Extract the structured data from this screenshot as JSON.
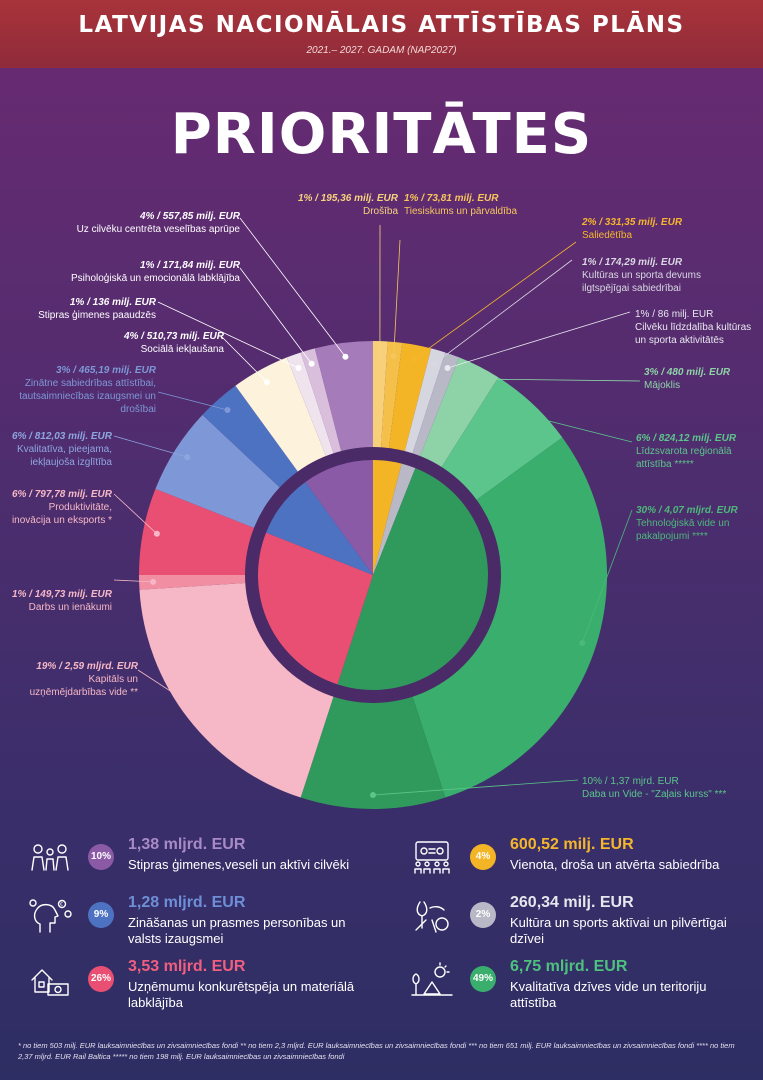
{
  "header": {
    "title": "LATVIJAS NACIONĀLAIS ATTĪSTĪBAS PLĀNS",
    "subtitle": "2021.– 2027. GADAM (NAP2027)"
  },
  "headline": "PRIORITĀTES",
  "chart_data": {
    "type": "pie",
    "outer_ring": [
      {
        "value_label": "1% / 195,36 milj. EUR",
        "name": "Drošība",
        "percent": 1,
        "color": "#f8d07a"
      },
      {
        "value_label": "1% / 73,81 milj. EUR",
        "name": "Tiesiskums un pārvaldība",
        "percent": 1,
        "color": "#f4c04a"
      },
      {
        "value_label": "2% / 331,35 milj. EUR",
        "name": "Saliedētība",
        "percent": 2,
        "color": "#f3b526"
      },
      {
        "value_label": "1% / 174,29 milj. EUR",
        "name": "Kultūras un sporta devums ilgtspējīgai sabiedrībai",
        "percent": 1,
        "color": "#d6d6e0"
      },
      {
        "value_label": "1% / 86 milj. EUR",
        "name": "Cilvēku līdzdalība kultūras un sporta aktivitātēs",
        "percent": 1,
        "color": "#b8b8c6"
      },
      {
        "value_label": "3% / 480 milj. EUR",
        "name": "Mājoklis",
        "percent": 3,
        "color": "#8ed3a8"
      },
      {
        "value_label": "6% / 824,12 milj. EUR",
        "name": "Līdzsvarota reģionālā attīstība *****",
        "percent": 6,
        "color": "#5cc58b"
      },
      {
        "value_label": "30% / 4,07 mljrd. EUR",
        "name": "Tehnoloģiskā vide un pakalpojumi ****",
        "percent": 30,
        "color": "#3aae6c"
      },
      {
        "value_label": "10% / 1,37 mjrd. EUR",
        "name": "Daba un Vide - \"Zaļais kurss\" ***",
        "percent": 10,
        "color": "#2f9a5c"
      },
      {
        "value_label": "19% / 2,59 mljrd. EUR",
        "name": "Kapitāls un uzņēmējdarbības vide **",
        "percent": 19,
        "color": "#f6b8c6"
      },
      {
        "value_label": "1% / 149,73 milj. EUR",
        "name": "Darbs un ienākumi",
        "percent": 1,
        "color": "#f28ea2"
      },
      {
        "value_label": "6% / 797,78 milj. EUR",
        "name": "Produktivitāte, inovācija un eksports *",
        "percent": 6,
        "color": "#e94f72"
      },
      {
        "value_label": "6% / 812,03 milj. EUR",
        "name": "Kvalitatīva, pieejama, iekļaujoša izglītība",
        "percent": 6,
        "color": "#7e97d6"
      },
      {
        "value_label": "3% / 465,19 milj. EUR",
        "name": "Zinātne sabiedrības attīstībai, tautsaimniecības izaugsmei un drošībai",
        "percent": 3,
        "color": "#4d72c2"
      },
      {
        "value_label": "4% / 510,73 milj. EUR",
        "name": "Sociālā iekļaušana",
        "percent": 4,
        "color": "#fdf3dc"
      },
      {
        "value_label": "1% / 136 milj. EUR",
        "name": "Stipras ģimenes paaudzēs",
        "percent": 1,
        "color": "#efe3ee"
      },
      {
        "value_label": "1% / 171,84 milj. EUR",
        "name": "Psiholoģiskā un emocionālā labklājība",
        "percent": 1,
        "color": "#d9bfdc"
      },
      {
        "value_label": "4% / 557,85 milj. EUR",
        "name": "Uz cilvēku centrēta veselības aprūpe",
        "percent": 4,
        "color": "#a67bba"
      }
    ],
    "inner_ring": [
      {
        "name": "Vienota, droša un atvērta sabiedrība",
        "percent": 4,
        "color": "#f3b526"
      },
      {
        "name": "Kultūra un sports aktīvai un pilvērtīgai dzīvei",
        "percent": 2,
        "color": "#b8b8c6"
      },
      {
        "name": "Kvalitatīva dzīves vide un teritoriju attīstība",
        "percent": 49,
        "color": "#2f9a5c"
      },
      {
        "name": "Uzņēmumu konkurētspēja un materiālā labklājība",
        "percent": 26,
        "color": "#e94f72"
      },
      {
        "name": "Zināšanas un prasmes personības un valsts izaugsmei",
        "percent": 9,
        "color": "#4d72c2"
      },
      {
        "name": "Stipras ģimenes,veseli un aktīvi cilvēki",
        "percent": 10,
        "color": "#8a5aa6"
      }
    ]
  },
  "summary": [
    {
      "percent_label": "10%",
      "amount": "1,38 mljrd. EUR",
      "desc": "Stipras ģimenes,veseli un aktīvi cilvēki",
      "color": "#8a5aa6",
      "amount_color": "#a88bc6",
      "icon": "family-icon"
    },
    {
      "percent_label": "9%",
      "amount": "1,28 mljrd. EUR",
      "desc": "Zināšanas un prasmes personības un valsts izaugsmei",
      "color": "#4d72c2",
      "amount_color": "#6e8fd8",
      "icon": "head-ideas-icon"
    },
    {
      "percent_label": "26%",
      "amount": "3,53 mljrd. EUR",
      "desc": "Uzņēmumu konkurētspēja un materiālā labklājība",
      "color": "#e94f72",
      "amount_color": "#f05f80",
      "icon": "house-money-icon"
    },
    {
      "percent_label": "4%",
      "amount": "600,52 milj. EUR",
      "desc": "Vienota, droša un atvērta sabiedrība",
      "color": "#f3b526",
      "amount_color": "#f6b62c",
      "icon": "community-board-icon"
    },
    {
      "percent_label": "2%",
      "amount": "260,34 milj. EUR",
      "desc": "Kultūra un sports aktīvai un pilvērtīgai dzīvei",
      "color": "#b8b8c6",
      "amount_color": "#e6e6ee",
      "icon": "culture-sport-icon"
    },
    {
      "percent_label": "49%",
      "amount": "6,75 mljrd. EUR",
      "desc": "Kvalitatīva dzīves vide un teritoriju attīstība",
      "color": "#3aae6c",
      "amount_color": "#4fc17f",
      "icon": "nature-icon"
    }
  ],
  "footnote": "*  no tiem 503 milj. EUR lauksaimniecības un zivsaimniecības fondi    ** no tiem 2,3 mljrd. EUR lauksaimniecības un zivsaimniecības fondi    *** no tiem 651 milj. EUR lauksaimniecības un zivsaimniecības fondi  **** no tiem 2,37 mljrd. EUR Rail Baltica   ***** no tiem 198 milj. EUR lauksaimniecības un zivsaimniecības fondi"
}
